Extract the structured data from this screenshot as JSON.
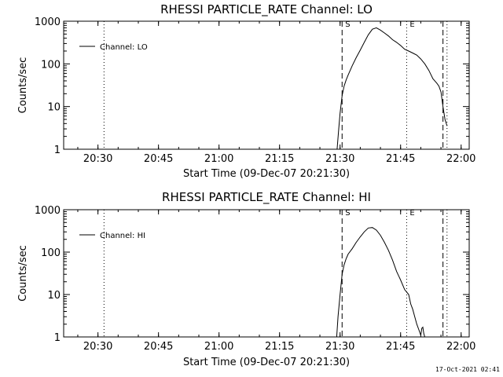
{
  "footer_timestamp": "17-Oct-2021 02:41",
  "chart_data": [
    {
      "type": "line",
      "title": "RHESSI PARTICLE_RATE Channel: LO",
      "xlabel": "Start Time (09-Dec-07 20:21:30)",
      "ylabel": "Counts/sec",
      "y_scale": "log",
      "ylim": [
        1,
        1000
      ],
      "xlim": [
        "20:21:30",
        "22:02:00"
      ],
      "x_ticks": [
        "20:30",
        "20:45",
        "21:00",
        "21:15",
        "21:30",
        "21:45",
        "22:00"
      ],
      "y_ticks": [
        "1",
        "10",
        "100",
        "1000"
      ],
      "legend": {
        "position": "top-left",
        "entries": [
          "Channel: LO"
        ]
      },
      "markers": [
        {
          "time": "20:31:30",
          "style": "dotted",
          "label": ""
        },
        {
          "time": "21:30:30",
          "style": "dashed",
          "label": "S"
        },
        {
          "time": "21:46:30",
          "style": "dotted",
          "label": "E"
        },
        {
          "time": "21:55:30",
          "style": "dashed",
          "label": ""
        },
        {
          "time": "21:56:30",
          "style": "dotted",
          "label": ""
        }
      ],
      "series": [
        {
          "name": "Channel: LO",
          "x": [
            "21:29:15",
            "21:29:40",
            "21:30:00",
            "21:30:30",
            "21:31:00",
            "21:31:30",
            "21:32:00",
            "21:33:00",
            "21:34:00",
            "21:35:00",
            "21:36:00",
            "21:37:00",
            "21:38:00",
            "21:39:00",
            "21:40:00",
            "21:41:00",
            "21:42:00",
            "21:43:00",
            "21:44:00",
            "21:45:00",
            "21:46:00",
            "21:47:00",
            "21:48:00",
            "21:49:00",
            "21:50:00",
            "21:51:00",
            "21:52:00",
            "21:53:00",
            "21:54:00",
            "21:54:30",
            "21:55:00",
            "21:55:30",
            "21:56:00",
            "21:56:30"
          ],
          "y": [
            1,
            3,
            7,
            18,
            30,
            42,
            55,
            90,
            140,
            210,
            320,
            480,
            650,
            700,
            620,
            530,
            450,
            370,
            320,
            270,
            220,
            200,
            180,
            160,
            130,
            100,
            70,
            45,
            35,
            30,
            22,
            10,
            5,
            3.5
          ]
        }
      ]
    },
    {
      "type": "line",
      "title": "RHESSI PARTICLE_RATE Channel: HI",
      "xlabel": "Start Time (09-Dec-07 20:21:30)",
      "ylabel": "Counts/sec",
      "y_scale": "log",
      "ylim": [
        1,
        1000
      ],
      "xlim": [
        "20:21:30",
        "22:02:00"
      ],
      "x_ticks": [
        "20:30",
        "20:45",
        "21:00",
        "21:15",
        "21:30",
        "21:45",
        "22:00"
      ],
      "y_ticks": [
        "1",
        "10",
        "100",
        "1000"
      ],
      "legend": {
        "position": "top-left",
        "entries": [
          "Channel: HI"
        ]
      },
      "markers": [
        {
          "time": "20:31:30",
          "style": "dotted",
          "label": ""
        },
        {
          "time": "21:30:30",
          "style": "dashed",
          "label": "S"
        },
        {
          "time": "21:46:30",
          "style": "dotted",
          "label": "E"
        },
        {
          "time": "21:55:30",
          "style": "dashed",
          "label": ""
        },
        {
          "time": "21:56:30",
          "style": "dotted",
          "label": ""
        }
      ],
      "series": [
        {
          "name": "Channel: HI",
          "x": [
            "21:29:10",
            "21:29:30",
            "21:30:00",
            "21:30:30",
            "21:31:00",
            "21:31:30",
            "21:32:00",
            "21:33:00",
            "21:34:00",
            "21:35:00",
            "21:36:00",
            "21:37:00",
            "21:38:00",
            "21:39:00",
            "21:40:00",
            "21:41:00",
            "21:42:00",
            "21:43:00",
            "21:44:00",
            "21:45:00",
            "21:46:00",
            "21:47:00",
            "21:47:30",
            "21:48:00",
            "21:48:30",
            "21:49:00",
            "21:49:30",
            "21:50:00",
            "21:50:15",
            "21:50:30",
            "21:50:45",
            "21:51:00"
          ],
          "y": [
            1,
            3,
            10,
            30,
            50,
            70,
            90,
            120,
            170,
            230,
            300,
            370,
            380,
            330,
            250,
            170,
            110,
            65,
            35,
            22,
            13,
            10,
            6,
            4.5,
            3,
            2,
            1.5,
            1.1,
            1.6,
            1.7,
            1.2,
            1
          ]
        }
      ]
    }
  ]
}
